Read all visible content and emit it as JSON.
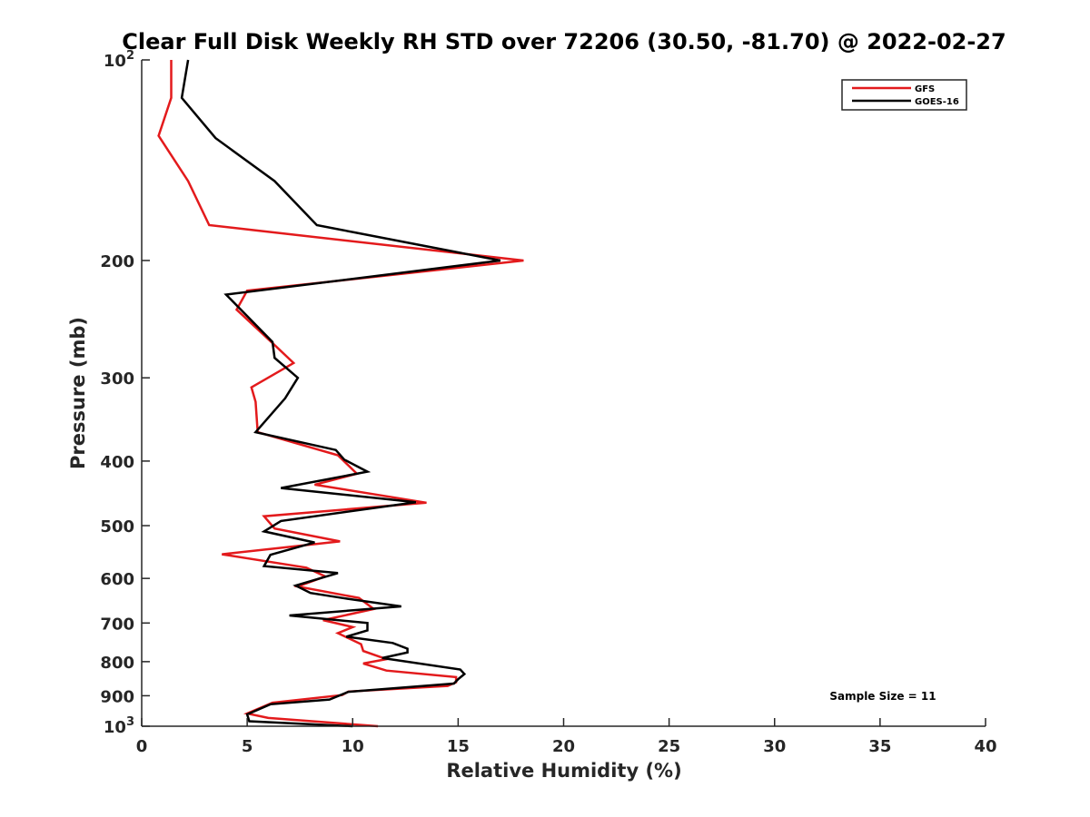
{
  "chart_data": {
    "type": "line",
    "title": "Clear Full Disk Weekly RH STD over 72206 (30.50, -81.70) @ 2022-02-27",
    "xlabel": "Relative Humidity (%)",
    "ylabel": "Pressure (mb)",
    "xlim": [
      0,
      40
    ],
    "ylim": [
      100,
      1000
    ],
    "y_scale": "log",
    "y_reversed": true,
    "x_ticks": [
      "0",
      "5",
      "10",
      "15",
      "20",
      "25",
      "30",
      "35",
      "40"
    ],
    "y_ticks": [
      {
        "value": 100,
        "base": "10",
        "exp": "2"
      },
      {
        "value": 200,
        "label": "200"
      },
      {
        "value": 300,
        "label": "300"
      },
      {
        "value": 400,
        "label": "400"
      },
      {
        "value": 500,
        "label": "500"
      },
      {
        "value": 600,
        "label": "600"
      },
      {
        "value": 700,
        "label": "700"
      },
      {
        "value": 800,
        "label": "800"
      },
      {
        "value": 900,
        "label": "900"
      },
      {
        "value": 1000,
        "base": "10",
        "exp": "3"
      }
    ],
    "grid": false,
    "legend_position": "top-right",
    "annotation": "Sample Size = 11",
    "series": [
      {
        "name": "GFS",
        "color": "#e31a1c",
        "x": [
          1.4,
          1.4,
          0.8,
          2.2,
          3.2,
          18.1,
          5.0,
          4.5,
          6.2,
          7.2,
          5.2,
          5.4,
          5.5,
          9.3,
          10.2,
          8.2,
          13.5,
          5.8,
          6.3,
          9.4,
          3.8,
          7.8,
          8.7,
          7.4,
          10.3,
          11.0,
          8.6,
          10.0,
          9.3,
          10.4,
          10.5,
          11.6,
          10.5,
          11.6,
          14.9,
          14.9,
          14.5,
          9.8,
          9.5,
          6.2,
          5.0,
          6.0,
          11.2
        ],
        "y": [
          100,
          114,
          130,
          152,
          177,
          200,
          222,
          237,
          266,
          285,
          310,
          326,
          362,
          392,
          418,
          434,
          462,
          484,
          505,
          528,
          552,
          578,
          596,
          617,
          642,
          667,
          693,
          710,
          725,
          753,
          771,
          793,
          805,
          825,
          844,
          859,
          870,
          887,
          898,
          922,
          957,
          972,
          1000
        ]
      },
      {
        "name": "GOES-16",
        "color": "#000000",
        "x": [
          2.2,
          1.9,
          3.5,
          6.3,
          8.3,
          17.0,
          4.0,
          6.2,
          6.3,
          7.4,
          6.8,
          5.4,
          9.2,
          9.6,
          10.7,
          6.6,
          13.0,
          6.6,
          5.8,
          8.2,
          6.1,
          5.8,
          9.3,
          7.3,
          8.0,
          9.5,
          12.3,
          7.0,
          10.7,
          10.7,
          9.7,
          11.9,
          12.6,
          12.6,
          11.4,
          15.1,
          15.3,
          15.0,
          14.8,
          9.8,
          8.9,
          6.1,
          5.0,
          5.1,
          10.0
        ],
        "y": [
          100,
          114,
          131,
          152,
          177,
          200,
          225,
          265,
          280,
          300,
          322,
          362,
          385,
          398,
          415,
          439,
          461,
          492,
          510,
          530,
          553,
          575,
          589,
          615,
          631,
          642,
          661,
          682,
          700,
          718,
          734,
          750,
          765,
          775,
          790,
          822,
          835,
          850,
          863,
          888,
          912,
          927,
          960,
          983,
          1000
        ]
      }
    ]
  }
}
